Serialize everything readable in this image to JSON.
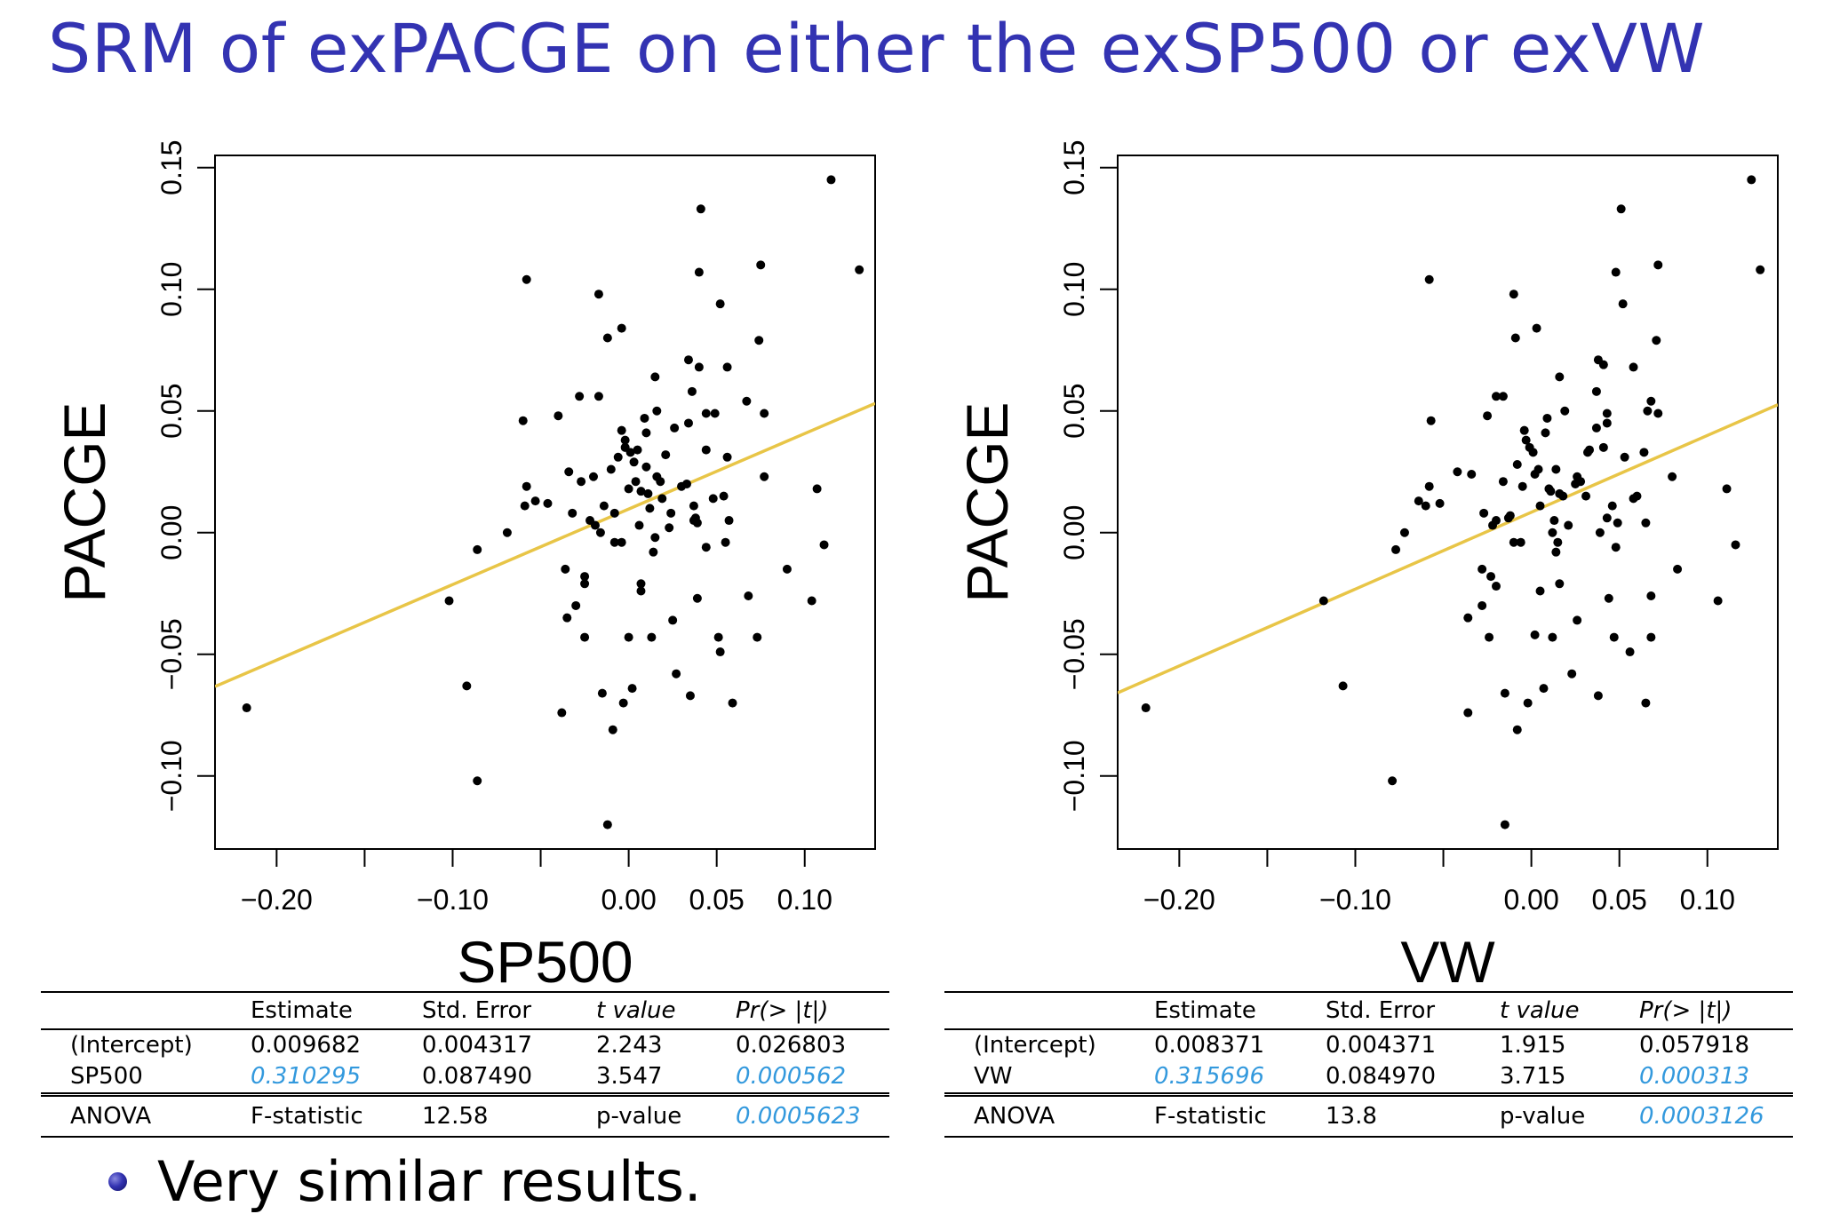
{
  "slide": {
    "title": "SRM of exPACGE on either the exSP500 or exVW",
    "bullet": "Very similar results."
  },
  "colors": {
    "title": "#3333b2",
    "fit_line": "#e8c547",
    "points": "#000000",
    "highlight": "#3399dd"
  },
  "chart_data": [
    {
      "type": "scatter",
      "title": "",
      "xlabel": "SP500",
      "ylabel": "PACGE",
      "xlim": [
        -0.235,
        0.14
      ],
      "ylim": [
        -0.13,
        0.155
      ],
      "xticks": [
        -0.2,
        -0.15,
        -0.1,
        -0.05,
        0.0,
        0.05,
        0.1
      ],
      "xtick_labels": [
        "−0.20",
        "",
        "−0.10",
        "",
        "0.00",
        "0.05",
        "0.10"
      ],
      "yticks": [
        -0.1,
        -0.05,
        0.0,
        0.05,
        0.1,
        0.15
      ],
      "ytick_labels": [
        "−0.10",
        "−0.05",
        "0.00",
        "0.05",
        "0.10",
        "0.15"
      ],
      "fit": {
        "intercept": 0.009682,
        "slope": 0.310295
      },
      "points": [
        [
          -0.217,
          -0.072
        ],
        [
          -0.102,
          -0.028
        ],
        [
          -0.092,
          -0.063
        ],
        [
          -0.086,
          -0.102
        ],
        [
          -0.086,
          -0.007
        ],
        [
          -0.069,
          0.0
        ],
        [
          -0.06,
          0.046
        ],
        [
          -0.059,
          0.011
        ],
        [
          -0.058,
          0.019
        ],
        [
          -0.058,
          0.104
        ],
        [
          -0.053,
          0.013
        ],
        [
          -0.046,
          0.012
        ],
        [
          -0.04,
          0.048
        ],
        [
          -0.038,
          -0.074
        ],
        [
          -0.036,
          -0.015
        ],
        [
          -0.035,
          -0.035
        ],
        [
          -0.034,
          0.025
        ],
        [
          -0.032,
          0.008
        ],
        [
          -0.03,
          -0.03
        ],
        [
          -0.028,
          0.056
        ],
        [
          -0.027,
          0.021
        ],
        [
          -0.025,
          -0.021
        ],
        [
          -0.025,
          -0.043
        ],
        [
          -0.025,
          -0.018
        ],
        [
          -0.022,
          0.005
        ],
        [
          -0.02,
          0.023
        ],
        [
          -0.019,
          0.003
        ],
        [
          -0.017,
          0.056
        ],
        [
          -0.017,
          0.098
        ],
        [
          -0.016,
          0.0
        ],
        [
          -0.015,
          -0.066
        ],
        [
          -0.014,
          0.011
        ],
        [
          -0.012,
          0.08
        ],
        [
          -0.012,
          -0.12
        ],
        [
          -0.01,
          0.026
        ],
        [
          -0.009,
          -0.081
        ],
        [
          -0.008,
          -0.004
        ],
        [
          -0.008,
          0.008
        ],
        [
          -0.006,
          0.031
        ],
        [
          -0.004,
          0.042
        ],
        [
          -0.004,
          -0.004
        ],
        [
          -0.004,
          0.084
        ],
        [
          -0.003,
          -0.07
        ],
        [
          -0.002,
          0.038
        ],
        [
          -0.002,
          0.035
        ],
        [
          0.0,
          0.018
        ],
        [
          0.0,
          -0.043
        ],
        [
          0.001,
          0.033
        ],
        [
          0.002,
          -0.064
        ],
        [
          0.003,
          0.029
        ],
        [
          0.004,
          0.021
        ],
        [
          0.005,
          0.034
        ],
        [
          0.006,
          0.003
        ],
        [
          0.007,
          -0.021
        ],
        [
          0.007,
          -0.024
        ],
        [
          0.007,
          0.017
        ],
        [
          0.009,
          0.047
        ],
        [
          0.01,
          0.041
        ],
        [
          0.01,
          0.027
        ],
        [
          0.011,
          0.016
        ],
        [
          0.012,
          0.01
        ],
        [
          0.013,
          -0.043
        ],
        [
          0.014,
          -0.008
        ],
        [
          0.015,
          0.064
        ],
        [
          0.015,
          -0.002
        ],
        [
          0.016,
          0.05
        ],
        [
          0.016,
          0.023
        ],
        [
          0.018,
          0.021
        ],
        [
          0.019,
          0.014
        ],
        [
          0.021,
          0.032
        ],
        [
          0.023,
          0.002
        ],
        [
          0.024,
          0.008
        ],
        [
          0.025,
          -0.036
        ],
        [
          0.026,
          0.043
        ],
        [
          0.027,
          -0.058
        ],
        [
          0.03,
          0.019
        ],
        [
          0.033,
          0.02
        ],
        [
          0.034,
          0.071
        ],
        [
          0.034,
          0.045
        ],
        [
          0.035,
          -0.067
        ],
        [
          0.036,
          0.058
        ],
        [
          0.037,
          0.005
        ],
        [
          0.037,
          0.011
        ],
        [
          0.038,
          0.006
        ],
        [
          0.039,
          0.004
        ],
        [
          0.039,
          -0.027
        ],
        [
          0.04,
          0.068
        ],
        [
          0.04,
          0.107
        ],
        [
          0.041,
          0.133
        ],
        [
          0.044,
          0.049
        ],
        [
          0.044,
          -0.006
        ],
        [
          0.044,
          0.034
        ],
        [
          0.048,
          0.014
        ],
        [
          0.049,
          0.049
        ],
        [
          0.051,
          -0.043
        ],
        [
          0.052,
          -0.049
        ],
        [
          0.052,
          0.094
        ],
        [
          0.054,
          0.015
        ],
        [
          0.055,
          -0.004
        ],
        [
          0.056,
          0.068
        ],
        [
          0.056,
          0.031
        ],
        [
          0.057,
          0.005
        ],
        [
          0.059,
          -0.07
        ],
        [
          0.067,
          0.054
        ],
        [
          0.068,
          -0.026
        ],
        [
          0.073,
          -0.043
        ],
        [
          0.074,
          0.079
        ],
        [
          0.075,
          0.11
        ],
        [
          0.077,
          0.049
        ],
        [
          0.077,
          0.023
        ],
        [
          0.09,
          -0.015
        ],
        [
          0.104,
          -0.028
        ],
        [
          0.107,
          0.018
        ],
        [
          0.111,
          -0.005
        ],
        [
          0.115,
          0.145
        ],
        [
          0.131,
          0.108
        ]
      ],
      "table": {
        "columns": [
          "",
          "Estimate",
          "Std.  Error",
          "t value",
          "Pr(> |t|)"
        ],
        "rows": [
          [
            "(Intercept)",
            "0.009682",
            "0.004317",
            "2.243",
            "0.026803"
          ],
          [
            "SP500",
            "0.310295",
            "0.087490",
            "3.547",
            "0.000562"
          ]
        ],
        "anova": [
          "ANOVA",
          "F-statistic",
          "12.58",
          "p-value",
          "0.0005623"
        ]
      }
    },
    {
      "type": "scatter",
      "title": "",
      "xlabel": "VW",
      "ylabel": "PACGE",
      "xlim": [
        -0.235,
        0.14
      ],
      "ylim": [
        -0.13,
        0.155
      ],
      "xticks": [
        -0.2,
        -0.15,
        -0.1,
        -0.05,
        0.0,
        0.05,
        0.1
      ],
      "xtick_labels": [
        "−0.20",
        "",
        "−0.10",
        "",
        "0.00",
        "0.05",
        "0.10"
      ],
      "yticks": [
        -0.1,
        -0.05,
        0.0,
        0.05,
        0.1,
        0.15
      ],
      "ytick_labels": [
        "−0.10",
        "−0.05",
        "0.00",
        "0.05",
        "0.10",
        "0.15"
      ],
      "fit": {
        "intercept": 0.008371,
        "slope": 0.315696
      },
      "points": [
        [
          -0.219,
          -0.072
        ],
        [
          -0.118,
          -0.028
        ],
        [
          -0.107,
          -0.063
        ],
        [
          -0.079,
          -0.102
        ],
        [
          -0.077,
          -0.007
        ],
        [
          -0.072,
          0.0
        ],
        [
          -0.057,
          0.046
        ],
        [
          -0.058,
          0.019
        ],
        [
          -0.058,
          0.104
        ],
        [
          -0.064,
          0.013
        ],
        [
          -0.06,
          0.011
        ],
        [
          -0.052,
          0.012
        ],
        [
          -0.042,
          0.025
        ],
        [
          -0.036,
          -0.074
        ],
        [
          -0.036,
          -0.035
        ],
        [
          -0.034,
          0.024
        ],
        [
          -0.028,
          -0.015
        ],
        [
          -0.028,
          -0.03
        ],
        [
          -0.027,
          0.008
        ],
        [
          -0.025,
          0.048
        ],
        [
          -0.024,
          -0.043
        ],
        [
          -0.023,
          -0.018
        ],
        [
          -0.022,
          0.003
        ],
        [
          -0.02,
          0.005
        ],
        [
          -0.02,
          0.056
        ],
        [
          -0.02,
          -0.022
        ],
        [
          -0.016,
          0.021
        ],
        [
          -0.016,
          0.056
        ],
        [
          -0.015,
          -0.066
        ],
        [
          -0.015,
          -0.12
        ],
        [
          -0.013,
          0.006
        ],
        [
          -0.012,
          0.007
        ],
        [
          -0.01,
          0.098
        ],
        [
          -0.01,
          -0.004
        ],
        [
          -0.009,
          0.08
        ],
        [
          -0.008,
          -0.081
        ],
        [
          -0.008,
          0.028
        ],
        [
          -0.006,
          -0.004
        ],
        [
          -0.005,
          0.019
        ],
        [
          -0.004,
          0.042
        ],
        [
          -0.003,
          0.038
        ],
        [
          -0.002,
          -0.07
        ],
        [
          -0.001,
          0.035
        ],
        [
          0.001,
          0.033
        ],
        [
          0.002,
          0.024
        ],
        [
          0.002,
          -0.042
        ],
        [
          0.003,
          0.084
        ],
        [
          0.004,
          0.026
        ],
        [
          0.005,
          0.011
        ],
        [
          0.005,
          -0.024
        ],
        [
          0.007,
          -0.064
        ],
        [
          0.008,
          0.041
        ],
        [
          0.009,
          0.047
        ],
        [
          0.01,
          0.018
        ],
        [
          0.011,
          0.017
        ],
        [
          0.012,
          0.0
        ],
        [
          0.012,
          -0.043
        ],
        [
          0.013,
          0.005
        ],
        [
          0.014,
          -0.008
        ],
        [
          0.014,
          0.026
        ],
        [
          0.015,
          -0.004
        ],
        [
          0.016,
          0.064
        ],
        [
          0.016,
          0.016
        ],
        [
          0.016,
          -0.021
        ],
        [
          0.018,
          0.015
        ],
        [
          0.019,
          0.05
        ],
        [
          0.021,
          0.003
        ],
        [
          0.023,
          -0.058
        ],
        [
          0.025,
          0.02
        ],
        [
          0.026,
          0.023
        ],
        [
          0.026,
          -0.036
        ],
        [
          0.028,
          0.021
        ],
        [
          0.031,
          0.015
        ],
        [
          0.032,
          0.033
        ],
        [
          0.033,
          0.034
        ],
        [
          0.037,
          0.043
        ],
        [
          0.037,
          0.058
        ],
        [
          0.038,
          0.071
        ],
        [
          0.038,
          -0.067
        ],
        [
          0.039,
          0.0
        ],
        [
          0.041,
          0.069
        ],
        [
          0.041,
          0.035
        ],
        [
          0.043,
          0.006
        ],
        [
          0.043,
          0.045
        ],
        [
          0.043,
          0.049
        ],
        [
          0.044,
          -0.027
        ],
        [
          0.046,
          0.011
        ],
        [
          0.047,
          -0.043
        ],
        [
          0.048,
          0.107
        ],
        [
          0.048,
          -0.006
        ],
        [
          0.049,
          0.004
        ],
        [
          0.051,
          0.133
        ],
        [
          0.052,
          0.094
        ],
        [
          0.053,
          0.031
        ],
        [
          0.056,
          -0.049
        ],
        [
          0.058,
          0.014
        ],
        [
          0.058,
          0.068
        ],
        [
          0.06,
          0.015
        ],
        [
          0.064,
          0.033
        ],
        [
          0.065,
          -0.07
        ],
        [
          0.065,
          0.004
        ],
        [
          0.066,
          0.05
        ],
        [
          0.068,
          -0.026
        ],
        [
          0.068,
          0.054
        ],
        [
          0.068,
          -0.043
        ],
        [
          0.071,
          0.079
        ],
        [
          0.072,
          0.11
        ],
        [
          0.072,
          0.049
        ],
        [
          0.08,
          0.023
        ],
        [
          0.083,
          -0.015
        ],
        [
          0.106,
          -0.028
        ],
        [
          0.111,
          0.018
        ],
        [
          0.116,
          -0.005
        ],
        [
          0.125,
          0.145
        ],
        [
          0.13,
          0.108
        ]
      ],
      "table": {
        "columns": [
          "",
          "Estimate",
          "Std.  Error",
          "t value",
          "Pr(> |t|)"
        ],
        "rows": [
          [
            "(Intercept)",
            "0.008371",
            "0.004371",
            "1.915",
            "0.057918"
          ],
          [
            "VW",
            "0.315696",
            "0.084970",
            "3.715",
            "0.000313"
          ]
        ],
        "anova": [
          "ANOVA",
          "F-statistic",
          "13.8",
          "p-value",
          "0.0003126"
        ]
      }
    }
  ]
}
